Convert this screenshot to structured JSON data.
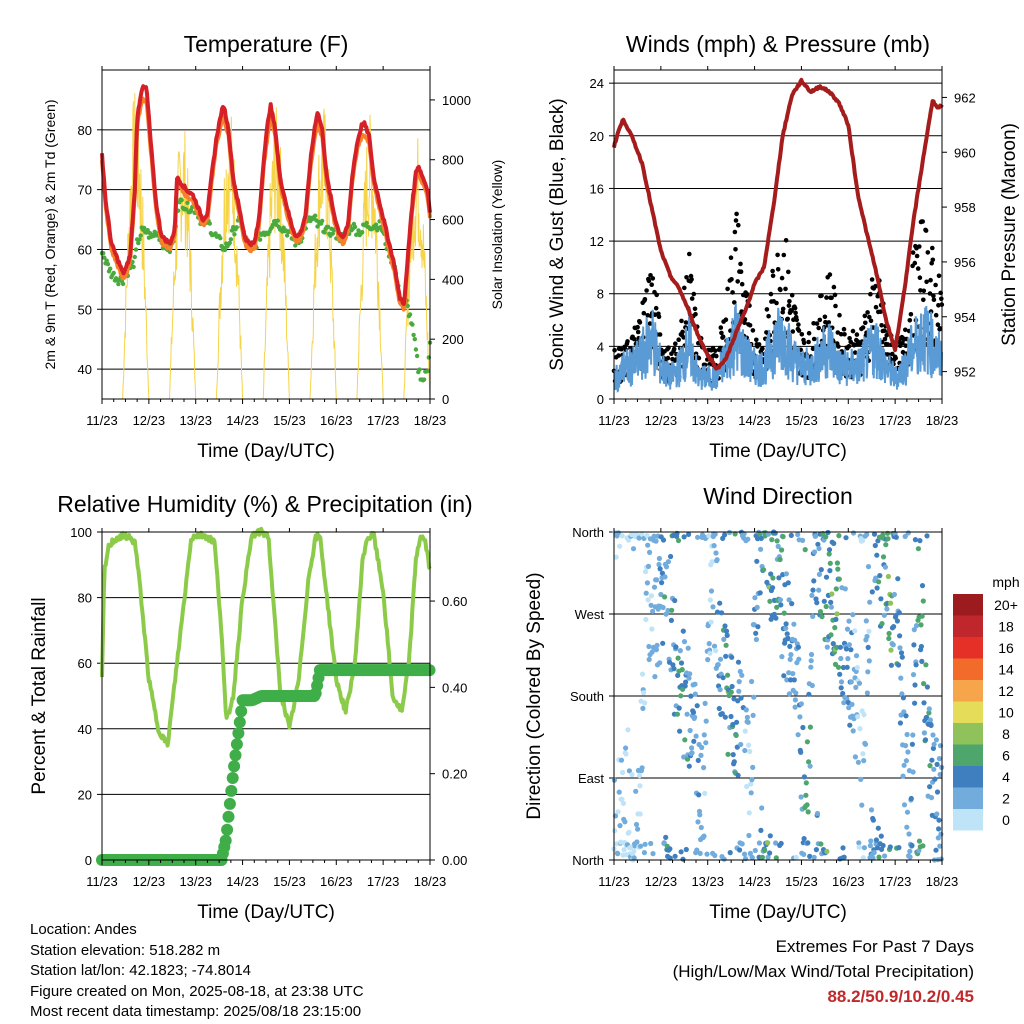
{
  "time_ticks": [
    "11/23",
    "12/23",
    "13/23",
    "14/23",
    "15/23",
    "16/23",
    "17/23",
    "18/23"
  ],
  "xlabel": "Time (Day/UTC)",
  "panels": {
    "temperature": {
      "title": "Temperature (F)",
      "ylabel_left": "2m & 9m T (Red, Orange) & 2m Td (Green)",
      "ylabel_right": "Solar Insolation (Yellow)",
      "left_ticks": [
        "40",
        "50",
        "60",
        "70",
        "80"
      ],
      "right_ticks": [
        "0",
        "200",
        "400",
        "600",
        "800",
        "1000"
      ]
    },
    "winds": {
      "title": "Winds (mph) & Pressure (mb)",
      "ylabel_left": "Sonic Wind & Gust (Blue, Black)",
      "ylabel_right": "Station Pressure (Maroon)",
      "left_ticks": [
        "0",
        "4",
        "8",
        "12",
        "16",
        "20",
        "24"
      ],
      "right_ticks": [
        "952",
        "954",
        "956",
        "958",
        "960",
        "962"
      ]
    },
    "humidity": {
      "title": "Relative Humidity (%) & Precipitation (in)",
      "ylabel_left": "Percent & Total Rainfall",
      "left_ticks": [
        "0",
        "20",
        "40",
        "60",
        "80",
        "100"
      ],
      "right_ticks": [
        "0.00",
        "0.20",
        "0.40",
        "0.60"
      ]
    },
    "direction": {
      "title": "Wind Direction",
      "ylabel_left": "Direction (Colored By Speed)",
      "left_ticks": [
        "North",
        "East",
        "South",
        "West",
        "North"
      ],
      "legend_title": "mph",
      "legend_labels": [
        "20+",
        "18",
        "16",
        "14",
        "12",
        "10",
        "8",
        "6",
        "4",
        "2",
        "0"
      ]
    }
  },
  "colors": {
    "temp2m": "#d62027",
    "temp9m": "#f5822a",
    "dewpoint": "#4aaa3e",
    "solar": "#f6d44a",
    "wind": "#5b9bd5",
    "gust": "#000000",
    "pressure": "#a51c1c",
    "rh": "#8ccb4a",
    "precip": "#3fae49",
    "legend": [
      "#9b1b1e",
      "#c0272d",
      "#e53027",
      "#f26b2b",
      "#f7a54a",
      "#e5dc5a",
      "#8fc25a",
      "#4ea66c",
      "#3f7fbf",
      "#72acdd",
      "#bfe3f7"
    ]
  },
  "info": {
    "location": "Location: Andes",
    "elevation": "Station elevation: 518.282 m",
    "latlon": "Station lat/lon: 42.1823; -74.8014",
    "created": "Figure created on Mon, 2025-08-18, at 23:38 UTC",
    "latest": "Most recent data timestamp: 2025/08/18 23:15:00"
  },
  "extremes": {
    "title": "Extremes For Past 7 Days",
    "subtitle": "(High/Low/Max Wind/Total Precipitation)",
    "values": "88.2/50.9/10.2/0.45"
  },
  "chart_data": [
    {
      "type": "line",
      "title": "Temperature (F)",
      "xlabel": "Time (Day/UTC)",
      "ylabel": "2m & 9m T (Red, Orange) & 2m Td (Green)",
      "y2label": "Solar Insolation (Yellow)",
      "ylim": [
        35,
        90
      ],
      "y2lim": [
        0,
        1100
      ],
      "x": [
        0,
        0.08,
        0.2,
        0.35,
        0.45,
        0.52,
        0.6,
        0.7,
        0.75,
        0.85,
        0.95,
        1.05,
        1.15,
        1.25,
        1.3,
        1.45,
        1.55,
        1.6,
        1.7,
        1.8,
        1.95,
        2.05,
        2.15,
        2.25,
        2.35,
        2.45,
        2.55,
        2.6,
        2.7,
        2.8,
        2.95,
        3.05,
        3.15,
        3.25,
        3.35,
        3.45,
        3.55,
        3.6,
        3.7,
        3.8,
        3.95,
        4.05,
        4.15,
        4.25,
        4.35,
        4.45,
        4.55,
        4.6,
        4.7,
        4.8,
        4.95,
        5.05,
        5.15,
        5.25,
        5.35,
        5.45,
        5.55,
        5.6,
        5.7,
        5.8,
        5.95,
        6.1,
        6.25,
        6.35,
        6.45,
        6.5,
        6.6,
        6.7,
        6.75,
        6.85,
        6.95,
        7.0
      ],
      "series": [
        {
          "name": "2m T",
          "values": [
            76,
            68,
            61,
            58,
            56,
            57,
            59,
            70,
            82,
            87,
            87,
            77,
            68,
            63,
            62,
            61,
            63,
            72,
            71,
            70,
            69,
            67,
            65,
            66,
            73,
            79,
            83,
            84,
            80,
            72,
            66,
            62,
            61,
            61,
            65,
            75,
            82,
            84,
            80,
            72,
            67,
            64,
            62,
            63,
            66,
            75,
            81,
            83,
            80,
            72,
            66,
            63,
            62,
            64,
            73,
            78,
            81,
            81,
            79,
            72,
            67,
            62,
            57,
            52,
            51,
            56,
            66,
            73,
            74,
            72,
            70,
            66
          ]
        },
        {
          "name": "9m T",
          "values": [
            75,
            67,
            60,
            57,
            55,
            56,
            58,
            69,
            81,
            85,
            85,
            76,
            67,
            62,
            61,
            60,
            62,
            71,
            70,
            69,
            68,
            66,
            64,
            65,
            72,
            78,
            81,
            82,
            79,
            71,
            65,
            61,
            60,
            60,
            64,
            74,
            80,
            82,
            79,
            71,
            66,
            63,
            61,
            62,
            65,
            74,
            79,
            81,
            79,
            71,
            65,
            62,
            61,
            63,
            72,
            77,
            79,
            79,
            78,
            71,
            66,
            61,
            56,
            51,
            50,
            55,
            65,
            72,
            73,
            71,
            69,
            65
          ]
        },
        {
          "name": "2m Td",
          "values": [
            60,
            58,
            56,
            55,
            55,
            56,
            57,
            58,
            61,
            63,
            63,
            62,
            63,
            62,
            61,
            60,
            62,
            67,
            68,
            67,
            67,
            66,
            64,
            65,
            63,
            62,
            61,
            60,
            61,
            63,
            65,
            62,
            60,
            60,
            62,
            63,
            63,
            64,
            65,
            64,
            63,
            62,
            61,
            62,
            64,
            65,
            65,
            64,
            64,
            63,
            63,
            62,
            62,
            63,
            64,
            63,
            63,
            64,
            64,
            64,
            64,
            60,
            57,
            52,
            50,
            51,
            48,
            43,
            40,
            38,
            40,
            45
          ]
        }
      ]
    },
    {
      "type": "line",
      "title": "Winds (mph) & Pressure (mb)",
      "xlabel": "Time (Day/UTC)",
      "ylabel": "Sonic Wind & Gust (Blue, Black)",
      "y2label": "Station Pressure (Maroon)",
      "ylim": [
        0,
        25
      ],
      "y2lim": [
        951,
        963
      ],
      "x": [
        0,
        0.1,
        0.2,
        0.4,
        0.6,
        0.8,
        1.0,
        1.2,
        1.4,
        1.6,
        1.8,
        2.0,
        2.2,
        2.4,
        2.6,
        2.8,
        3.0,
        3.2,
        3.4,
        3.6,
        3.8,
        4.0,
        4.2,
        4.4,
        4.6,
        4.8,
        5.0,
        5.2,
        5.4,
        5.6,
        5.8,
        6.0,
        6.2,
        6.4,
        6.6,
        6.8,
        6.9,
        7.0
      ],
      "series": [
        {
          "name": "Pressure",
          "values": [
            960.2,
            960.8,
            961.2,
            960.5,
            959.6,
            958.0,
            956.4,
            955.5,
            955.0,
            954.2,
            953.3,
            952.6,
            952.1,
            952.5,
            953.4,
            954.2,
            955.2,
            955.8,
            958.0,
            960.6,
            962.1,
            962.6,
            962.2,
            962.4,
            962.2,
            961.8,
            961.0,
            958.5,
            957.0,
            955.6,
            953.9,
            952.8,
            955.0,
            957.6,
            959.8,
            961.9,
            961.6,
            961.7
          ]
        },
        {
          "name": "Wind",
          "values": [
            2,
            2,
            3,
            3,
            4,
            6,
            3,
            2,
            3,
            5,
            2,
            2,
            2,
            4,
            6,
            4,
            3,
            3,
            5,
            6,
            4,
            3,
            3,
            4,
            5,
            3,
            3,
            3,
            4,
            5,
            3,
            2,
            3,
            5,
            6,
            5,
            4,
            4
          ]
        },
        {
          "name": "Gust",
          "values": [
            3,
            3,
            3,
            4,
            6,
            9,
            4,
            3,
            4,
            9,
            4,
            3,
            3,
            6,
            12,
            7,
            4,
            4,
            8,
            11,
            7,
            4,
            4,
            6,
            8,
            5,
            4,
            4,
            6,
            8,
            5,
            3,
            4,
            9,
            11,
            9,
            7,
            8
          ]
        }
      ]
    },
    {
      "type": "line",
      "title": "Relative Humidity (%) & Precipitation (in)",
      "xlabel": "Time (Day/UTC)",
      "ylabel": "Percent & Total Rainfall",
      "ylim": [
        0,
        100
      ],
      "y2lim": [
        0,
        0.76
      ],
      "x": [
        0,
        0.05,
        0.15,
        0.3,
        0.5,
        0.6,
        0.7,
        0.8,
        1.0,
        1.2,
        1.4,
        1.6,
        1.8,
        1.9,
        2.0,
        2.2,
        2.4,
        2.55,
        2.65,
        2.8,
        3.0,
        3.2,
        3.4,
        3.55,
        3.65,
        3.8,
        4.0,
        4.2,
        4.4,
        4.55,
        4.65,
        4.8,
        5.0,
        5.2,
        5.4,
        5.55,
        5.65,
        5.8,
        6.0,
        6.2,
        6.4,
        6.55,
        6.7,
        6.8,
        6.9,
        7.0
      ],
      "series": [
        {
          "name": "RH",
          "values": [
            55,
            88,
            96,
            98,
            99,
            98,
            97,
            85,
            55,
            40,
            35,
            60,
            85,
            98,
            99,
            99,
            97,
            70,
            42,
            50,
            80,
            99,
            100,
            99,
            80,
            52,
            40,
            55,
            85,
            98,
            99,
            80,
            55,
            45,
            60,
            90,
            98,
            99,
            82,
            50,
            45,
            60,
            92,
            99,
            97,
            88
          ]
        },
        {
          "name": "Precipitation",
          "values": [
            0,
            0,
            0,
            0,
            0,
            0,
            0,
            0,
            0,
            0,
            0,
            0,
            0,
            0,
            0,
            0,
            0,
            0,
            0.05,
            0.2,
            0.37,
            0.37,
            0.38,
            0.38,
            0.38,
            0.38,
            0.38,
            0.38,
            0.38,
            0.38,
            0.44,
            0.44,
            0.44,
            0.44,
            0.44,
            0.44,
            0.44,
            0.44,
            0.44,
            0.44,
            0.44,
            0.44,
            0.44,
            0.44,
            0.44,
            0.44
          ]
        }
      ]
    },
    {
      "type": "scatter",
      "title": "Wind Direction",
      "xlabel": "Time (Day/UTC)",
      "ylabel": "Direction (Colored By Speed)",
      "ylim": [
        0,
        360
      ],
      "yticks": [
        "North",
        "East",
        "South",
        "West",
        "North"
      ],
      "legend": "mph",
      "x": [
        0.1,
        0.3,
        0.5,
        0.7,
        0.9,
        1.1,
        1.3,
        1.5,
        1.7,
        1.9,
        2.1,
        2.3,
        2.5,
        2.7,
        2.9,
        3.1,
        3.3,
        3.5,
        3.7,
        3.9,
        4.1,
        4.3,
        4.5,
        4.7,
        4.9,
        5.1,
        5.3,
        5.5,
        5.7,
        5.9,
        6.1,
        6.3,
        6.5,
        6.7,
        6.9
      ],
      "y": [
        40,
        80,
        20,
        300,
        250,
        330,
        220,
        180,
        150,
        60,
        330,
        200,
        170,
        150,
        90,
        350,
        340,
        300,
        250,
        200,
        30,
        350,
        310,
        280,
        240,
        200,
        100,
        350,
        320,
        280,
        230,
        30,
        350,
        120,
        60
      ],
      "speed": [
        1,
        1,
        1,
        1,
        2,
        4,
        4,
        5,
        3,
        2,
        1,
        4,
        6,
        3,
        1,
        4,
        6,
        5,
        4,
        2,
        5,
        3,
        5,
        6,
        4,
        2,
        1,
        3,
        5,
        6,
        3,
        2,
        5,
        4,
        3
      ]
    }
  ]
}
